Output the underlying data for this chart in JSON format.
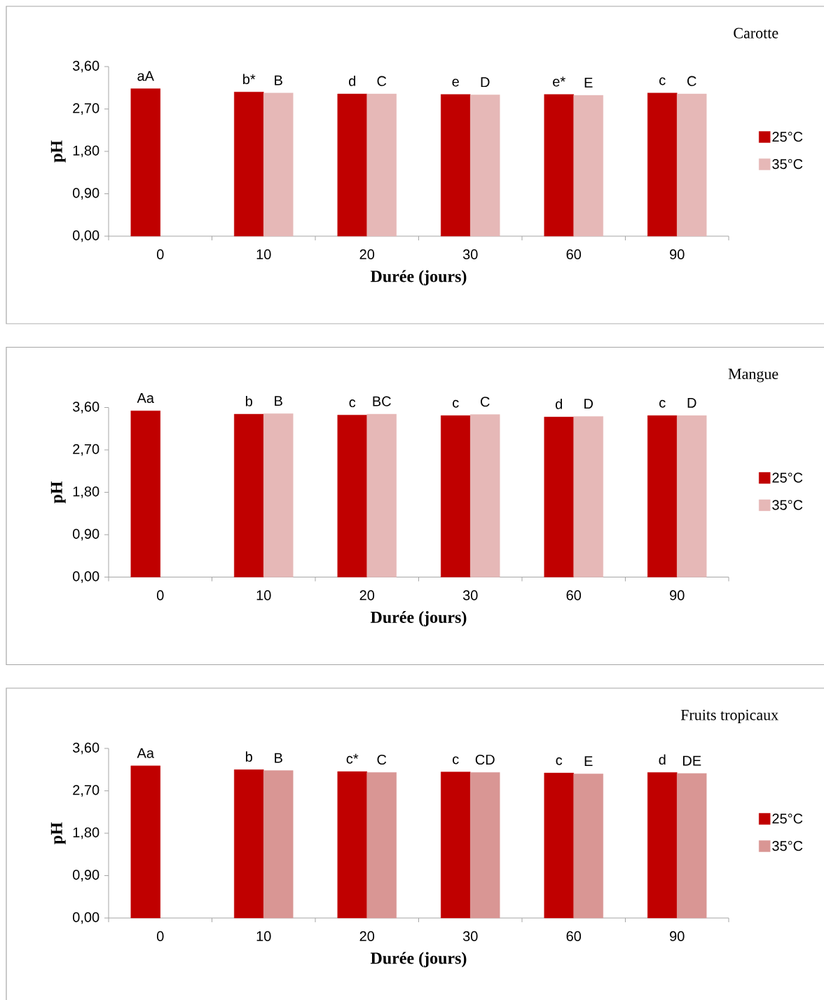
{
  "chart_data": [
    {
      "type": "bar",
      "title": "Carotte",
      "xlabel": "Durée (jours)",
      "ylabel": "pH",
      "categories": [
        "0",
        "10",
        "20",
        "30",
        "60",
        "90"
      ],
      "ylim": [
        0,
        3.6
      ],
      "yticks": [
        {
          "value": 0,
          "label": "0,00"
        },
        {
          "value": 0.9,
          "label": "0,90"
        },
        {
          "value": 1.8,
          "label": "1,80"
        },
        {
          "value": 2.7,
          "label": "2,70"
        },
        {
          "value": 3.6,
          "label": "3,60"
        }
      ],
      "grid": false,
      "legend": "right",
      "series": [
        {
          "name": "25°C",
          "color": "#c00000",
          "values": [
            3.13,
            3.06,
            3.02,
            3.01,
            3.01,
            3.04
          ],
          "value_labels": [
            "aA",
            "b*",
            "d",
            "e",
            "e*",
            "c"
          ]
        },
        {
          "name": "35°C",
          "color": "#e6b8b7",
          "values": [
            null,
            3.04,
            3.02,
            3.0,
            2.99,
            3.02
          ],
          "value_labels": [
            null,
            "B",
            "C",
            "D",
            "E",
            "C"
          ]
        }
      ]
    },
    {
      "type": "bar",
      "title": "Mangue",
      "xlabel": "Durée (jours)",
      "ylabel": "pH",
      "categories": [
        "0",
        "10",
        "20",
        "30",
        "60",
        "90"
      ],
      "ylim": [
        0,
        3.6
      ],
      "yticks": [
        {
          "value": 0,
          "label": "0,00"
        },
        {
          "value": 0.9,
          "label": "0,90"
        },
        {
          "value": 1.8,
          "label": "1,80"
        },
        {
          "value": 2.7,
          "label": "2,70"
        },
        {
          "value": 3.6,
          "label": "3,60"
        }
      ],
      "grid": false,
      "legend": "right",
      "series": [
        {
          "name": "25°C",
          "color": "#c00000",
          "values": [
            3.53,
            3.46,
            3.44,
            3.43,
            3.4,
            3.43
          ],
          "value_labels": [
            "Aa",
            "b",
            "c",
            "c",
            "d",
            "c"
          ]
        },
        {
          "name": "35°C",
          "color": "#e6b8b7",
          "values": [
            null,
            3.47,
            3.46,
            3.45,
            3.41,
            3.43
          ],
          "value_labels": [
            null,
            "B",
            "BC",
            "C",
            "D",
            "D"
          ]
        }
      ]
    },
    {
      "type": "bar",
      "title": "Fruits tropicaux",
      "xlabel": "Durée (jours)",
      "ylabel": "pH",
      "categories": [
        "0",
        "10",
        "20",
        "30",
        "60",
        "90"
      ],
      "ylim": [
        0,
        3.6
      ],
      "yticks": [
        {
          "value": 0,
          "label": "0,00"
        },
        {
          "value": 0.9,
          "label": "0,90"
        },
        {
          "value": 1.8,
          "label": "1,80"
        },
        {
          "value": 2.7,
          "label": "2,70"
        },
        {
          "value": 3.6,
          "label": "3,60"
        }
      ],
      "grid": false,
      "legend": "right",
      "series": [
        {
          "name": "25°C",
          "color": "#c00000",
          "values": [
            3.23,
            3.15,
            3.11,
            3.1,
            3.08,
            3.09
          ],
          "value_labels": [
            "Aa",
            "b",
            "c*",
            "c",
            "c",
            "d"
          ]
        },
        {
          "name": "35°C",
          "color": "#d99694",
          "values": [
            null,
            3.13,
            3.09,
            3.09,
            3.06,
            3.07
          ],
          "value_labels": [
            null,
            "B",
            "C",
            "CD",
            "E",
            "DE"
          ]
        }
      ]
    }
  ]
}
